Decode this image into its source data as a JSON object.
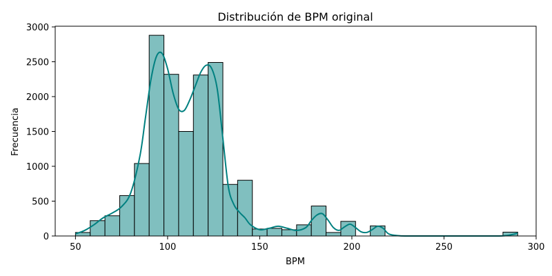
{
  "chart_data": {
    "type": "bar",
    "title": "Distribución de BPM original",
    "xlabel": "BPM",
    "ylabel": "Frecuencia",
    "xlim": [
      39,
      300
    ],
    "ylim": [
      0,
      3010
    ],
    "xticks": [
      50,
      100,
      150,
      200,
      250,
      300
    ],
    "yticks": [
      0,
      500,
      1000,
      1500,
      2000,
      2500,
      3000
    ],
    "grid": false,
    "legend": "none",
    "bin_width": 8,
    "bins": [
      {
        "x0": 50,
        "x1": 58,
        "count": 50
      },
      {
        "x0": 58,
        "x1": 66,
        "count": 220
      },
      {
        "x0": 66,
        "x1": 74,
        "count": 290
      },
      {
        "x0": 74,
        "x1": 82,
        "count": 580
      },
      {
        "x0": 82,
        "x1": 90,
        "count": 1040
      },
      {
        "x0": 90,
        "x1": 98,
        "count": 2880
      },
      {
        "x0": 98,
        "x1": 106,
        "count": 2320
      },
      {
        "x0": 106,
        "x1": 114,
        "count": 1500
      },
      {
        "x0": 114,
        "x1": 122,
        "count": 2310
      },
      {
        "x0": 122,
        "x1": 130,
        "count": 2490
      },
      {
        "x0": 130,
        "x1": 138,
        "count": 740
      },
      {
        "x0": 138,
        "x1": 146,
        "count": 800
      },
      {
        "x0": 146,
        "x1": 154,
        "count": 100
      },
      {
        "x0": 154,
        "x1": 162,
        "count": 110
      },
      {
        "x0": 162,
        "x1": 170,
        "count": 90
      },
      {
        "x0": 170,
        "x1": 178,
        "count": 160
      },
      {
        "x0": 178,
        "x1": 186,
        "count": 430
      },
      {
        "x0": 186,
        "x1": 194,
        "count": 50
      },
      {
        "x0": 194,
        "x1": 202,
        "count": 210
      },
      {
        "x0": 202,
        "x1": 210,
        "count": 0
      },
      {
        "x0": 210,
        "x1": 218,
        "count": 145
      },
      {
        "x0": 282,
        "x1": 290,
        "count": 55
      }
    ],
    "kde": {
      "x": [
        50,
        55,
        60,
        65,
        70,
        75,
        80,
        85,
        88,
        91,
        94,
        97,
        100,
        103,
        106,
        109,
        112,
        115,
        118,
        121,
        124,
        127,
        130,
        133,
        136,
        139,
        142,
        145,
        150,
        155,
        160,
        165,
        170,
        175,
        178,
        181,
        184,
        187,
        190,
        193,
        196,
        199,
        202,
        205,
        208,
        211,
        214,
        217,
        220,
        225,
        230,
        240,
        250,
        260,
        270,
        280,
        285,
        290
      ],
      "y": [
        30,
        80,
        160,
        260,
        330,
        420,
        620,
        1150,
        1700,
        2250,
        2580,
        2620,
        2400,
        2050,
        1820,
        1800,
        1950,
        2150,
        2350,
        2450,
        2400,
        2100,
        1400,
        700,
        450,
        340,
        260,
        160,
        90,
        110,
        140,
        110,
        80,
        120,
        220,
        300,
        320,
        230,
        120,
        80,
        130,
        170,
        120,
        60,
        50,
        90,
        140,
        110,
        30,
        5,
        0,
        0,
        0,
        0,
        0,
        0,
        10,
        40
      ]
    },
    "colors": {
      "bar_fill": "#80bfbf",
      "bar_edge": "#000000",
      "kde_line": "#008080"
    }
  }
}
